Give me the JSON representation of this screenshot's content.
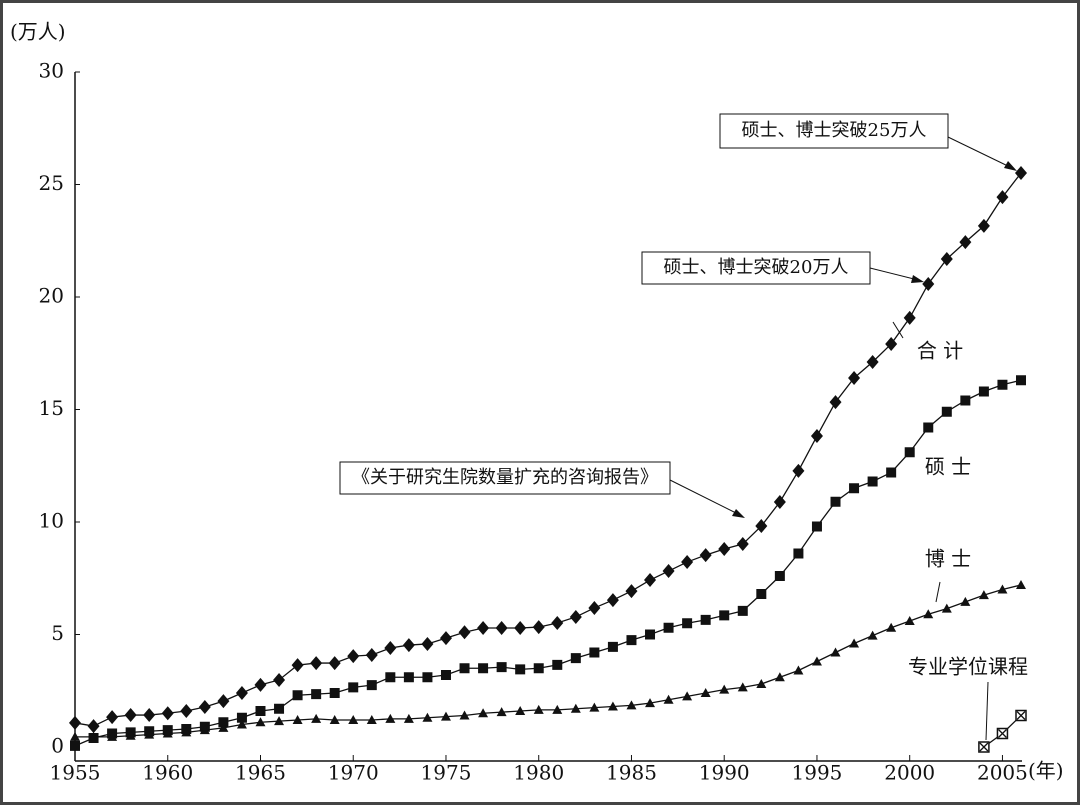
{
  "chart_data": {
    "type": "line",
    "y_label": "(万人)",
    "x_label": "(年)",
    "x": [
      1955,
      1956,
      1957,
      1958,
      1959,
      1960,
      1961,
      1962,
      1963,
      1964,
      1965,
      1966,
      1967,
      1968,
      1969,
      1970,
      1971,
      1972,
      1973,
      1974,
      1975,
      1976,
      1977,
      1978,
      1979,
      1980,
      1981,
      1982,
      1983,
      1984,
      1985,
      1986,
      1987,
      1988,
      1989,
      1990,
      1991,
      1992,
      1993,
      1994,
      1995,
      1996,
      1997,
      1998,
      1999,
      2000,
      2001,
      2002,
      2003,
      2004,
      2005,
      2006
    ],
    "xlim": [
      1955,
      2006
    ],
    "xticks": [
      1955,
      1960,
      1965,
      1970,
      1975,
      1980,
      1985,
      1990,
      1995,
      2000,
      2005
    ],
    "ylim": [
      0,
      30
    ],
    "yticks": [
      0,
      5,
      10,
      15,
      20,
      25,
      30
    ],
    "series": [
      {
        "name": "合 计",
        "color": "#111111",
        "marker": "diamond",
        "values": [
          1.07,
          0.93,
          1.33,
          1.42,
          1.42,
          1.5,
          1.6,
          1.78,
          2.04,
          2.4,
          2.76,
          2.98,
          3.64,
          3.73,
          3.73,
          4.04,
          4.09,
          4.4,
          4.53,
          4.58,
          4.84,
          5.1,
          5.29,
          5.29,
          5.29,
          5.33,
          5.51,
          5.78,
          6.18,
          6.53,
          6.93,
          7.42,
          7.82,
          8.22,
          8.53,
          8.8,
          9.02,
          9.82,
          10.89,
          12.27,
          13.82,
          15.33,
          16.4,
          17.11,
          17.91,
          19.07,
          20.58,
          21.69,
          22.44,
          23.16,
          24.44,
          25.51
        ]
      },
      {
        "name": "硕 士",
        "color": "#111111",
        "marker": "square",
        "values": [
          0.05,
          0.4,
          0.6,
          0.65,
          0.7,
          0.75,
          0.8,
          0.9,
          1.1,
          1.3,
          1.6,
          1.7,
          2.3,
          2.35,
          2.4,
          2.65,
          2.75,
          3.1,
          3.1,
          3.1,
          3.2,
          3.5,
          3.5,
          3.55,
          3.45,
          3.5,
          3.65,
          3.95,
          4.2,
          4.45,
          4.75,
          5.0,
          5.3,
          5.5,
          5.65,
          5.85,
          6.05,
          6.8,
          7.6,
          8.6,
          9.8,
          10.9,
          11.5,
          11.8,
          12.2,
          13.1,
          14.2,
          14.9,
          15.4,
          15.8,
          16.1,
          16.3
        ]
      },
      {
        "name": "博 士",
        "color": "#111111",
        "marker": "triangle",
        "values": [
          0.45,
          0.45,
          0.45,
          0.5,
          0.55,
          0.6,
          0.65,
          0.75,
          0.85,
          1.0,
          1.1,
          1.15,
          1.2,
          1.25,
          1.2,
          1.2,
          1.2,
          1.25,
          1.25,
          1.3,
          1.35,
          1.4,
          1.5,
          1.55,
          1.6,
          1.65,
          1.65,
          1.7,
          1.75,
          1.8,
          1.85,
          1.95,
          2.1,
          2.25,
          2.4,
          2.55,
          2.65,
          2.8,
          3.1,
          3.4,
          3.8,
          4.2,
          4.6,
          4.95,
          5.3,
          5.6,
          5.9,
          6.15,
          6.45,
          6.75,
          7.0,
          7.2
        ]
      },
      {
        "name": "专业学位课程",
        "color": "#111111",
        "marker": "crossbox",
        "values": [
          null,
          null,
          null,
          null,
          null,
          null,
          null,
          null,
          null,
          null,
          null,
          null,
          null,
          null,
          null,
          null,
          null,
          null,
          null,
          null,
          null,
          null,
          null,
          null,
          null,
          null,
          null,
          null,
          null,
          null,
          null,
          null,
          null,
          null,
          null,
          null,
          null,
          null,
          null,
          null,
          null,
          null,
          null,
          null,
          null,
          null,
          null,
          null,
          null,
          0,
          0.6,
          1.4
        ]
      }
    ],
    "annotations": [
      {
        "text": "硕士、博士突破25万人"
      },
      {
        "text": "硕士、博士突破20万人"
      },
      {
        "text": "《关于研究生院数量扩充的咨询报告》"
      }
    ]
  }
}
